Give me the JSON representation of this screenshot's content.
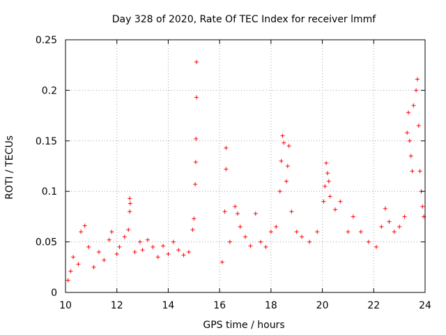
{
  "chart_data": {
    "type": "scatter",
    "title": "Day 328 of 2020, Rate Of TEC Index for receiver lmmf",
    "xlabel": "GPS time / hours",
    "ylabel": "ROTI / TECUs",
    "xlim": [
      10,
      24
    ],
    "ylim": [
      0,
      0.25
    ],
    "xticks": [
      10,
      12,
      14,
      16,
      18,
      20,
      22,
      24
    ],
    "xtick_labels": [
      "10",
      "12",
      "14",
      "16",
      "18",
      "20",
      "22",
      "24"
    ],
    "yticks": [
      0,
      0.05,
      0.1,
      0.15,
      0.2,
      0.25
    ],
    "ytick_labels": [
      "0",
      "0.05",
      "0.1",
      "0.15",
      "0.2",
      "0.25"
    ],
    "grid": true,
    "marker": "+",
    "color": "#ff0000",
    "series": [
      {
        "name": "ROTI",
        "points": [
          [
            10.1,
            0.012
          ],
          [
            10.2,
            0.021
          ],
          [
            10.3,
            0.035
          ],
          [
            10.5,
            0.028
          ],
          [
            10.6,
            0.06
          ],
          [
            10.75,
            0.066
          ],
          [
            10.9,
            0.045
          ],
          [
            11.1,
            0.025
          ],
          [
            11.3,
            0.04
          ],
          [
            11.5,
            0.032
          ],
          [
            11.7,
            0.052
          ],
          [
            11.8,
            0.06
          ],
          [
            12.0,
            0.038
          ],
          [
            12.1,
            0.045
          ],
          [
            12.3,
            0.055
          ],
          [
            12.45,
            0.062
          ],
          [
            12.5,
            0.093
          ],
          [
            12.52,
            0.088
          ],
          [
            12.5,
            0.08
          ],
          [
            12.7,
            0.04
          ],
          [
            12.9,
            0.05
          ],
          [
            13.0,
            0.042
          ],
          [
            13.2,
            0.052
          ],
          [
            13.4,
            0.045
          ],
          [
            13.6,
            0.035
          ],
          [
            13.8,
            0.046
          ],
          [
            14.0,
            0.038
          ],
          [
            14.2,
            0.05
          ],
          [
            14.4,
            0.042
          ],
          [
            14.6,
            0.037
          ],
          [
            14.8,
            0.04
          ],
          [
            14.95,
            0.062
          ],
          [
            15.0,
            0.073
          ],
          [
            15.05,
            0.107
          ],
          [
            15.07,
            0.129
          ],
          [
            15.08,
            0.152
          ],
          [
            15.1,
            0.193
          ],
          [
            15.1,
            0.228
          ],
          [
            16.1,
            0.03
          ],
          [
            16.2,
            0.08
          ],
          [
            16.25,
            0.122
          ],
          [
            16.25,
            0.143
          ],
          [
            16.4,
            0.05
          ],
          [
            16.6,
            0.085
          ],
          [
            16.7,
            0.078
          ],
          [
            16.8,
            0.065
          ],
          [
            17.0,
            0.055
          ],
          [
            17.2,
            0.046
          ],
          [
            17.4,
            0.078
          ],
          [
            17.6,
            0.05
          ],
          [
            17.8,
            0.045
          ],
          [
            18.0,
            0.06
          ],
          [
            18.2,
            0.065
          ],
          [
            18.35,
            0.1
          ],
          [
            18.4,
            0.13
          ],
          [
            18.45,
            0.155
          ],
          [
            18.5,
            0.148
          ],
          [
            18.6,
            0.11
          ],
          [
            18.65,
            0.125
          ],
          [
            18.7,
            0.145
          ],
          [
            18.8,
            0.08
          ],
          [
            19.0,
            0.06
          ],
          [
            19.2,
            0.055
          ],
          [
            19.5,
            0.05
          ],
          [
            19.8,
            0.06
          ],
          [
            20.05,
            0.09
          ],
          [
            20.1,
            0.105
          ],
          [
            20.15,
            0.128
          ],
          [
            20.2,
            0.118
          ],
          [
            20.25,
            0.11
          ],
          [
            20.3,
            0.095
          ],
          [
            20.5,
            0.082
          ],
          [
            20.7,
            0.09
          ],
          [
            21.0,
            0.06
          ],
          [
            21.2,
            0.075
          ],
          [
            21.5,
            0.06
          ],
          [
            21.8,
            0.05
          ],
          [
            22.1,
            0.045
          ],
          [
            22.3,
            0.065
          ],
          [
            22.45,
            0.083
          ],
          [
            22.6,
            0.07
          ],
          [
            22.8,
            0.06
          ],
          [
            23.0,
            0.065
          ],
          [
            23.2,
            0.075
          ],
          [
            23.3,
            0.158
          ],
          [
            23.35,
            0.178
          ],
          [
            23.4,
            0.15
          ],
          [
            23.45,
            0.135
          ],
          [
            23.5,
            0.12
          ],
          [
            23.55,
            0.185
          ],
          [
            23.65,
            0.2
          ],
          [
            23.7,
            0.211
          ],
          [
            23.75,
            0.165
          ],
          [
            23.8,
            0.12
          ],
          [
            23.85,
            0.1
          ],
          [
            23.9,
            0.085
          ],
          [
            23.95,
            0.075
          ]
        ]
      }
    ]
  }
}
